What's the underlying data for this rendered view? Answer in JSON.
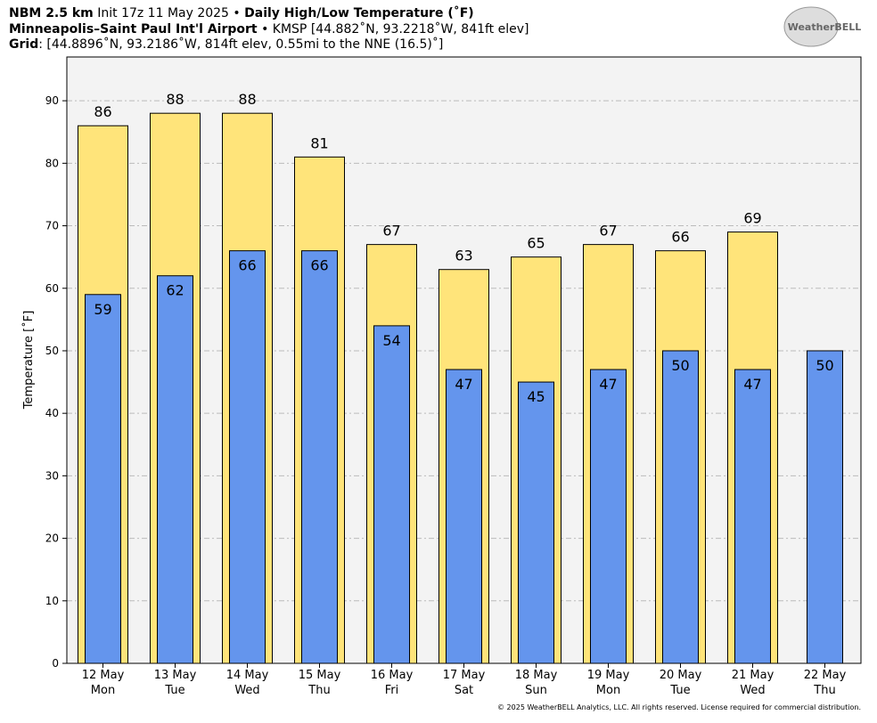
{
  "chart_data": {
    "type": "bar",
    "title_line1": [
      "NBM 2.5 km",
      " Init 17z 11 May 2025 • ",
      "Daily High/Low Temperature (˚F)"
    ],
    "title_line2": [
      "Minneapolis–Saint Paul Int'l Airport",
      " • KMSP [44.882˚N, 93.2218˚W, 841ft elev]"
    ],
    "title_line3": [
      "Grid",
      ": [44.8896˚N, 93.2186˚W, 814ft elev, 0.55mi to the NNE (16.5)˚]"
    ],
    "logo": "WeatherBELL",
    "ylabel": "Temperature [˚F]",
    "footer": "© 2025 WeatherBELL Analytics, LLC. All rights reserved. License required for commercial distribution.",
    "categories": [
      [
        "12 May",
        "Mon"
      ],
      [
        "13 May",
        "Tue"
      ],
      [
        "14 May",
        "Wed"
      ],
      [
        "15 May",
        "Thu"
      ],
      [
        "16 May",
        "Fri"
      ],
      [
        "17 May",
        "Sat"
      ],
      [
        "18 May",
        "Sun"
      ],
      [
        "19 May",
        "Mon"
      ],
      [
        "20 May",
        "Tue"
      ],
      [
        "21 May",
        "Wed"
      ],
      [
        "22 May",
        "Thu"
      ]
    ],
    "series": [
      {
        "color": "#ffe47a",
        "values": [
          86,
          88,
          88,
          81,
          67,
          63,
          65,
          67,
          66,
          69,
          null
        ]
      },
      {
        "color": "#6495ed",
        "values": [
          59,
          62,
          66,
          66,
          54,
          47,
          45,
          47,
          50,
          47,
          50
        ]
      }
    ],
    "ylim": [
      0,
      97
    ],
    "yticks": [
      0,
      10,
      20,
      30,
      40,
      50,
      60,
      70,
      80,
      90
    ],
    "grid": true
  }
}
